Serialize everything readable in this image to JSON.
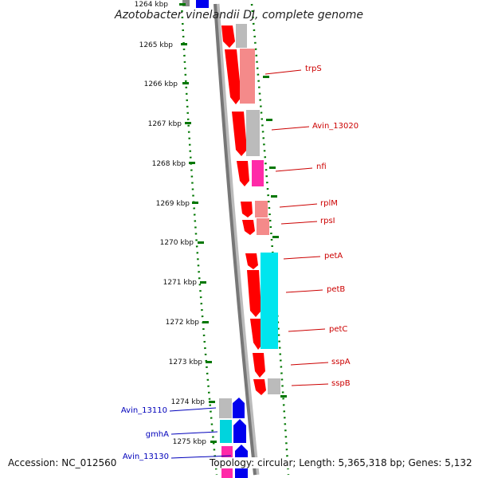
{
  "title": "Azotobacter vinelandii DJ, complete genome",
  "footer": {
    "accession": "Accession: NC_012560",
    "summary": "Topology: circular; Length: 5,365,318 bp; Genes: 5,132"
  },
  "colors": {
    "cds_dark": "#ff0000",
    "cds_light": "#f48a8a",
    "gray_light": "#bbbbbb",
    "magenta": "#ff2aa8",
    "cyan": "#00e5ee",
    "blue": "#0000ee",
    "dotted_green": "#007700",
    "label_red": "#cc0000",
    "label_blue": "#0000bb"
  },
  "ticks": [
    "1264 kbp",
    "1265 kbp",
    "1266 kbp",
    "1267 kbp",
    "1268 kbp",
    "1269 kbp",
    "1270 kbp",
    "1271 kbp",
    "1272 kbp",
    "1273 kbp",
    "1274 kbp",
    "1275 kbp"
  ],
  "right_labels": [
    "trpS",
    "Avin_13020",
    "nfi",
    "rplM",
    "rpsI",
    "petA",
    "petB",
    "petC",
    "sspA",
    "sspB"
  ],
  "left_labels": [
    "Avin_13110",
    "gmhA",
    "Avin_13130"
  ]
}
